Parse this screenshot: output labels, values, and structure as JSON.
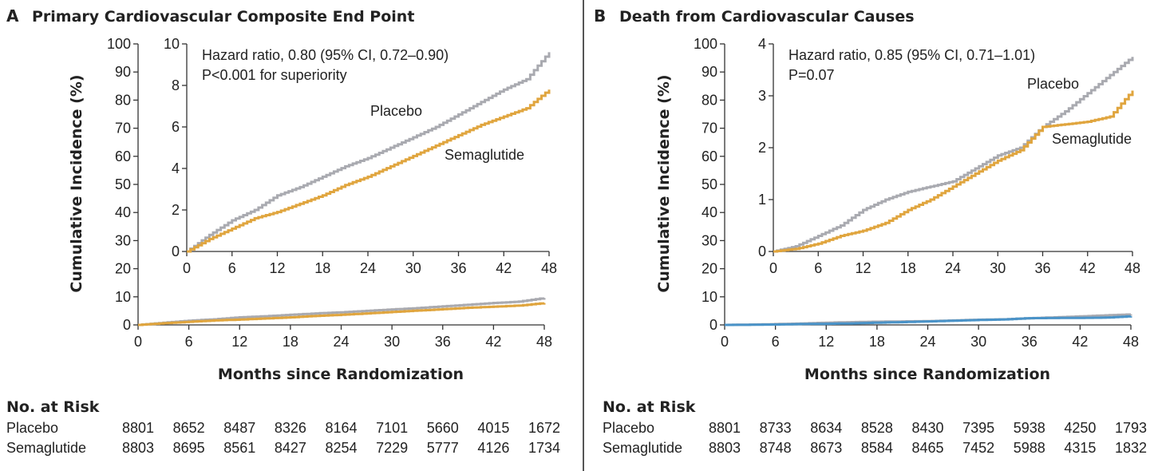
{
  "colors": {
    "placebo": "#a9aab0",
    "semaglutide": "#e0a53e",
    "semaglutide_panel_b_main": "#4a93c8",
    "divider": "#555555"
  },
  "chart_data": [
    {
      "type": "line",
      "panel": "A",
      "title": "Primary Cardiovascular Composite End Point",
      "xlabel": "Months since Randomization",
      "ylabel": "Cumulative Incidence (%)",
      "xticks": [
        0,
        6,
        12,
        18,
        24,
        30,
        36,
        42,
        48
      ],
      "xlim": [
        0,
        48
      ],
      "yticks": [
        0,
        10,
        20,
        30,
        40,
        50,
        60,
        70,
        80,
        90,
        100
      ],
      "ylim": [
        0,
        100
      ],
      "inset": {
        "xticks": [
          0,
          6,
          12,
          18,
          24,
          30,
          36,
          42,
          48
        ],
        "xlim": [
          0,
          48
        ],
        "yticks": [
          0,
          2,
          4,
          6,
          8,
          10
        ],
        "ylim": [
          0,
          10
        ],
        "hazard_text": "Hazard ratio, 0.80 (95% CI, 0.72–0.90)",
        "p_text": "P<0.001 for superiority"
      },
      "series": [
        {
          "name": "Placebo",
          "x": [
            0,
            3,
            6,
            9,
            12,
            15,
            18,
            21,
            24,
            27,
            30,
            33,
            36,
            39,
            42,
            45,
            48
          ],
          "values": [
            0,
            0.8,
            1.5,
            2.0,
            2.7,
            3.1,
            3.6,
            4.1,
            4.5,
            5.0,
            5.5,
            6.0,
            6.6,
            7.2,
            7.8,
            8.3,
            9.6
          ]
        },
        {
          "name": "Semaglutide",
          "x": [
            0,
            3,
            6,
            9,
            12,
            15,
            18,
            21,
            24,
            27,
            30,
            33,
            36,
            39,
            42,
            45,
            48
          ],
          "values": [
            0,
            0.6,
            1.1,
            1.6,
            1.9,
            2.3,
            2.7,
            3.2,
            3.6,
            4.1,
            4.6,
            5.1,
            5.6,
            6.1,
            6.5,
            6.9,
            7.8
          ]
        }
      ],
      "at_risk": {
        "heading": "No. at Risk",
        "rows": [
          {
            "label": "Placebo",
            "values": [
              "8801",
              "8652",
              "8487",
              "8326",
              "8164",
              "7101",
              "5660",
              "4015",
              "1672"
            ]
          },
          {
            "label": "Semaglutide",
            "values": [
              "8803",
              "8695",
              "8561",
              "8427",
              "8254",
              "7229",
              "5777",
              "4126",
              "1734"
            ]
          }
        ]
      }
    },
    {
      "type": "line",
      "panel": "B",
      "title": "Death from Cardiovascular Causes",
      "xlabel": "Months since Randomization",
      "ylabel": "Cumulative Incidence (%)",
      "xticks": [
        0,
        6,
        12,
        18,
        24,
        30,
        36,
        42,
        48
      ],
      "xlim": [
        0,
        48
      ],
      "yticks": [
        0,
        10,
        20,
        30,
        40,
        50,
        60,
        70,
        80,
        90,
        100
      ],
      "ylim": [
        0,
        100
      ],
      "inset": {
        "xticks": [
          0,
          6,
          12,
          18,
          24,
          30,
          36,
          42,
          48
        ],
        "xlim": [
          0,
          48
        ],
        "yticks": [
          0,
          1,
          2,
          3,
          4
        ],
        "ylim": [
          0,
          4
        ],
        "hazard_text": "Hazard ratio, 0.85 (95% CI, 0.71–1.01)",
        "p_text": "P=0.07"
      },
      "series": [
        {
          "name": "Placebo",
          "x": [
            0,
            3,
            6,
            9,
            12,
            15,
            18,
            21,
            24,
            27,
            30,
            33,
            36,
            39,
            42,
            45,
            48
          ],
          "values": [
            0,
            0.1,
            0.3,
            0.5,
            0.8,
            1.0,
            1.15,
            1.25,
            1.35,
            1.6,
            1.85,
            2.0,
            2.4,
            2.7,
            3.05,
            3.4,
            3.75
          ]
        },
        {
          "name": "Semaglutide",
          "x": [
            0,
            3,
            6,
            9,
            12,
            15,
            18,
            21,
            24,
            27,
            30,
            33,
            36,
            39,
            42,
            45,
            48
          ],
          "values": [
            0,
            0.05,
            0.15,
            0.3,
            0.4,
            0.55,
            0.8,
            1.0,
            1.25,
            1.5,
            1.75,
            1.95,
            2.4,
            2.45,
            2.5,
            2.6,
            3.1
          ]
        }
      ],
      "at_risk": {
        "heading": "No. at Risk",
        "rows": [
          {
            "label": "Placebo",
            "values": [
              "8801",
              "8733",
              "8634",
              "8528",
              "8430",
              "7395",
              "5938",
              "4250",
              "1793"
            ]
          },
          {
            "label": "Semaglutide",
            "values": [
              "8803",
              "8748",
              "8673",
              "8584",
              "8465",
              "7452",
              "5988",
              "4315",
              "1832"
            ]
          }
        ]
      }
    }
  ]
}
